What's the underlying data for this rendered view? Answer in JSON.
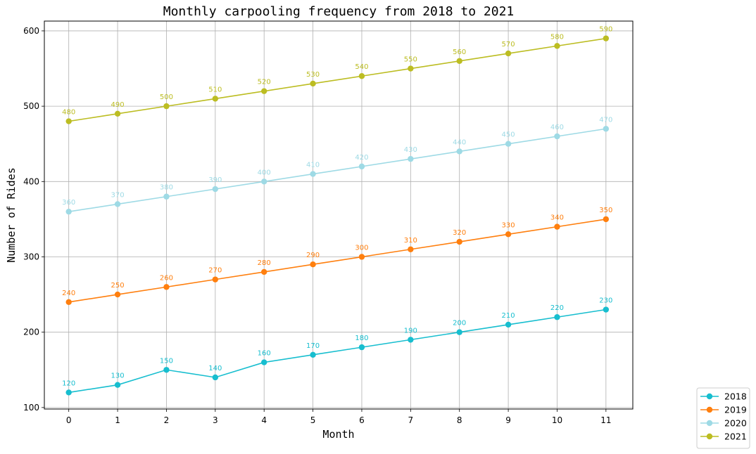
{
  "chart_data": {
    "type": "line",
    "title": "Monthly carpooling frequency from 2018 to 2021",
    "xlabel": "Month",
    "ylabel": "Number of Rides",
    "x": [
      0,
      1,
      2,
      3,
      4,
      5,
      6,
      7,
      8,
      9,
      10,
      11
    ],
    "x_ticks": [
      "0",
      "1",
      "2",
      "3",
      "4",
      "5",
      "6",
      "7",
      "8",
      "9",
      "10",
      "11"
    ],
    "y_ticks": [
      "100",
      "200",
      "300",
      "400",
      "500",
      "600"
    ],
    "xlim": [
      -0.5,
      11.55
    ],
    "ylim": [
      98,
      613
    ],
    "grid": true,
    "legend_position": "lower-right outside",
    "series": [
      {
        "name": "2018",
        "color": "#17becf",
        "values": [
          120,
          130,
          150,
          140,
          160,
          170,
          180,
          190,
          200,
          210,
          220,
          230
        ]
      },
      {
        "name": "2019",
        "color": "#ff7f0e",
        "values": [
          240,
          250,
          260,
          270,
          280,
          290,
          300,
          310,
          320,
          330,
          340,
          350
        ]
      },
      {
        "name": "2020",
        "color": "#9edae5",
        "values": [
          360,
          370,
          380,
          390,
          400,
          410,
          420,
          430,
          440,
          450,
          460,
          470
        ]
      },
      {
        "name": "2021",
        "color": "#bcbd22",
        "values": [
          480,
          490,
          500,
          510,
          520,
          530,
          540,
          550,
          560,
          570,
          580,
          590
        ]
      }
    ]
  }
}
